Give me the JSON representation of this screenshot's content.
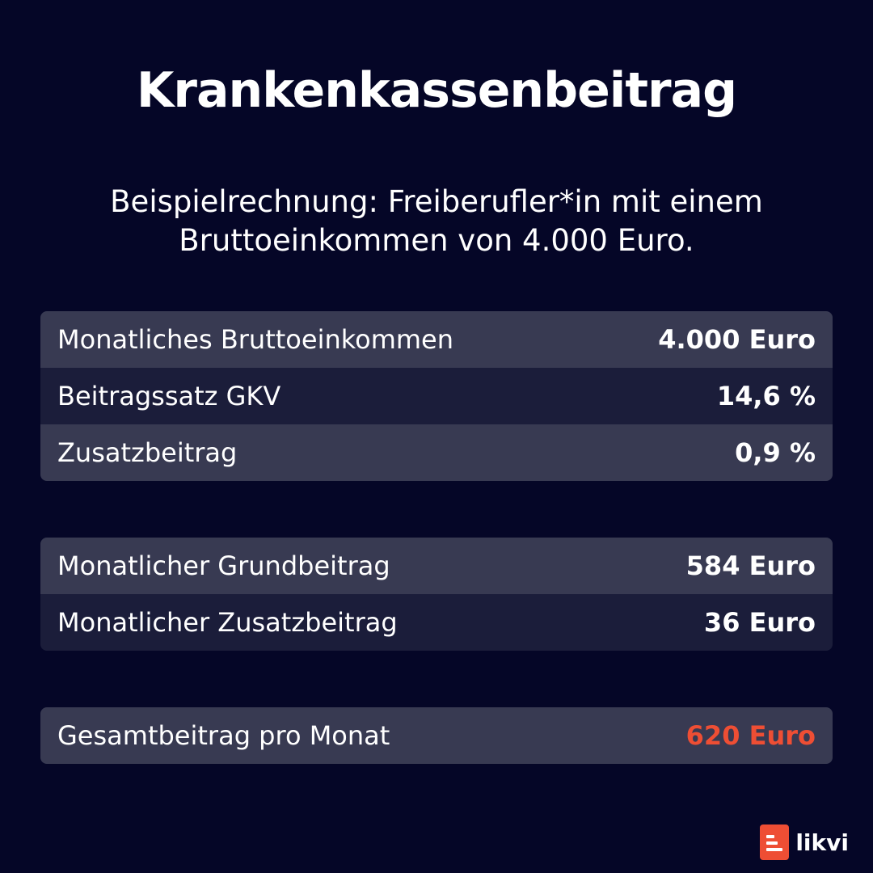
{
  "title": "Krankenkassenbeitrag",
  "subtitle": {
    "line1": "Beispielrechnung: Freiberufler*in mit einem",
    "line2": "Bruttoeinkommen von 4.000 Euro."
  },
  "tables": [
    {
      "rows": [
        {
          "label": "Monatliches Bruttoeinkommen",
          "value": "4.000 Euro"
        },
        {
          "label": "Beitragssatz GKV",
          "value": "14,6 %"
        },
        {
          "label": "Zusatzbeitrag",
          "value": "0,9 %"
        }
      ]
    },
    {
      "rows": [
        {
          "label": "Monatlicher Grundbeitrag",
          "value": "584 Euro"
        },
        {
          "label": "Monatlicher Zusatzbeitrag",
          "value": "36 Euro"
        }
      ]
    },
    {
      "rows": [
        {
          "label": "Gesamtbeitrag pro Monat",
          "value": "620 Euro"
        }
      ]
    }
  ],
  "brand": {
    "name": "likvi",
    "icon": "likvi-logo-icon",
    "color": "#ee4e34"
  },
  "colors": {
    "background": "#050627",
    "row_light": "#383a52",
    "row_dark": "#1b1d3a",
    "accent": "#ee4e34"
  }
}
